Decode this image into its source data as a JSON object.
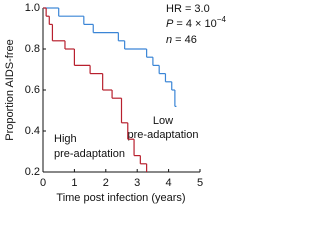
{
  "chart_data": {
    "type": "step",
    "x_label": "Time post infection (years)",
    "y_label": "Proportion AIDS-free",
    "xlim": [
      0,
      5
    ],
    "xticks": [
      0,
      1,
      2,
      3,
      4,
      5
    ],
    "ylim": [
      0.2,
      1.0
    ],
    "yticks": [
      0.2,
      0.4,
      0.6,
      0.8,
      {
        "value": 1.0,
        "label": "1.0"
      }
    ],
    "annotations": {
      "hr": "HR = 3.0",
      "p": {
        "italic": "P",
        "text": " = 4 × 10",
        "superscript": "−4"
      },
      "n": {
        "italic": "n",
        "text": " = 46"
      }
    },
    "series": [
      {
        "name": [
          "Low",
          "pre-adaptation"
        ],
        "color": "#3a85d6",
        "x": [
          0,
          0.5,
          1.3,
          1.6,
          2.4,
          2.6,
          3.3,
          3.5,
          3.7,
          3.9,
          4.1,
          4.2,
          4.25
        ],
        "values": [
          1.0,
          0.96,
          0.92,
          0.88,
          0.84,
          0.8,
          0.76,
          0.72,
          0.68,
          0.64,
          0.6,
          0.52,
          0.52
        ]
      },
      {
        "name": [
          "High",
          "pre-adaptation"
        ],
        "color": "#b8202e",
        "x": [
          0,
          0.1,
          0.2,
          0.3,
          0.7,
          1.0,
          1.5,
          1.9,
          2.2,
          2.5,
          2.7,
          2.9,
          3.1,
          3.3
        ],
        "values": [
          1.0,
          0.96,
          0.92,
          0.84,
          0.8,
          0.72,
          0.68,
          0.6,
          0.56,
          0.44,
          0.36,
          0.28,
          0.24,
          0.2
        ]
      }
    ]
  }
}
